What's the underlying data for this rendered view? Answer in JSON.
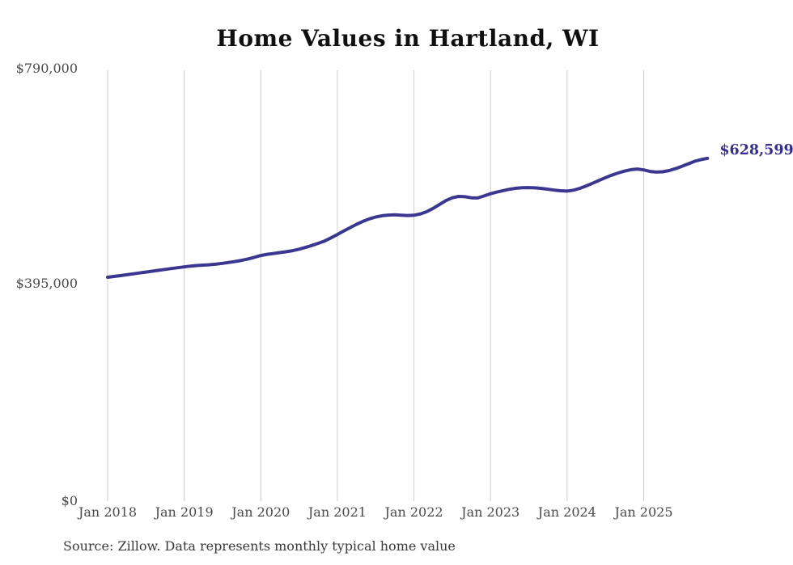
{
  "title": "Home Values in Hartland, WI",
  "footer": {
    "source": "Source: Zillow. Data represents monthly typical home value"
  },
  "colors": {
    "line": "#3b3791",
    "end_label": "#342e8c",
    "gridline": "#cccccc",
    "axis_text": "#4a4a4a",
    "title_text": "#0f0f0f"
  },
  "chart_data": {
    "type": "line",
    "title": "Home Values in Hartland, WI",
    "xlabel": "",
    "ylabel": "",
    "ylim": [
      0,
      790000
    ],
    "grid": "vertical-only",
    "legend_position": "none",
    "end_label": "$628,599",
    "end_value": 628599,
    "y_tick_labels": [
      "$790,000",
      "$395,000",
      "$0"
    ],
    "y_tick_values": [
      790000,
      395000,
      0
    ],
    "x_tick_labels": [
      "Jan 2018",
      "Jan 2019",
      "Jan 2020",
      "Jan 2021",
      "Jan 2022",
      "Jan 2023",
      "Jan 2024",
      "Jan 2025"
    ],
    "x": [
      "2018-01",
      "2018-02",
      "2018-03",
      "2018-04",
      "2018-05",
      "2018-06",
      "2018-07",
      "2018-08",
      "2018-09",
      "2018-10",
      "2018-11",
      "2018-12",
      "2019-01",
      "2019-02",
      "2019-03",
      "2019-04",
      "2019-05",
      "2019-06",
      "2019-07",
      "2019-08",
      "2019-09",
      "2019-10",
      "2019-11",
      "2019-12",
      "2020-01",
      "2020-02",
      "2020-03",
      "2020-04",
      "2020-05",
      "2020-06",
      "2020-07",
      "2020-08",
      "2020-09",
      "2020-10",
      "2020-11",
      "2020-12",
      "2021-01",
      "2021-02",
      "2021-03",
      "2021-04",
      "2021-05",
      "2021-06",
      "2021-07",
      "2021-08",
      "2021-09",
      "2021-10",
      "2021-11",
      "2021-12",
      "2022-01",
      "2022-02",
      "2022-03",
      "2022-04",
      "2022-05",
      "2022-06",
      "2022-07",
      "2022-08",
      "2022-09",
      "2022-10",
      "2022-11",
      "2022-12",
      "2023-01",
      "2023-02",
      "2023-03",
      "2023-04",
      "2023-05",
      "2023-06",
      "2023-07",
      "2023-08",
      "2023-09",
      "2023-10",
      "2023-11",
      "2023-12",
      "2024-01",
      "2024-02",
      "2024-03",
      "2024-04",
      "2024-05",
      "2024-06",
      "2024-07",
      "2024-08",
      "2024-09",
      "2024-10",
      "2024-11",
      "2024-12",
      "2025-01",
      "2025-02",
      "2025-03",
      "2025-04",
      "2025-05",
      "2025-06",
      "2025-07",
      "2025-08",
      "2025-09",
      "2025-10",
      "2025-11"
    ],
    "values": [
      410500,
      412000,
      413600,
      415200,
      416800,
      418400,
      420100,
      421700,
      423300,
      424900,
      426500,
      428100,
      429600,
      431000,
      432000,
      432800,
      433600,
      434700,
      436000,
      437700,
      439500,
      441500,
      444000,
      447200,
      450400,
      452600,
      454200,
      455800,
      457400,
      459400,
      462000,
      465200,
      468800,
      472800,
      477000,
      482800,
      489000,
      495400,
      501600,
      507600,
      513000,
      517600,
      521000,
      523400,
      524600,
      525000,
      524400,
      523800,
      524200,
      526600,
      530800,
      536800,
      544000,
      551000,
      556200,
      558800,
      558200,
      556200,
      556000,
      559600,
      563700,
      566800,
      569500,
      571900,
      573700,
      574700,
      574900,
      574500,
      573500,
      572000,
      570400,
      569200,
      568600,
      570200,
      573600,
      578000,
      583000,
      588200,
      593200,
      597800,
      601800,
      605200,
      607800,
      609000,
      607400,
      604600,
      603400,
      604000,
      606200,
      609800,
      614000,
      618600,
      623200,
      626400,
      628599
    ]
  }
}
